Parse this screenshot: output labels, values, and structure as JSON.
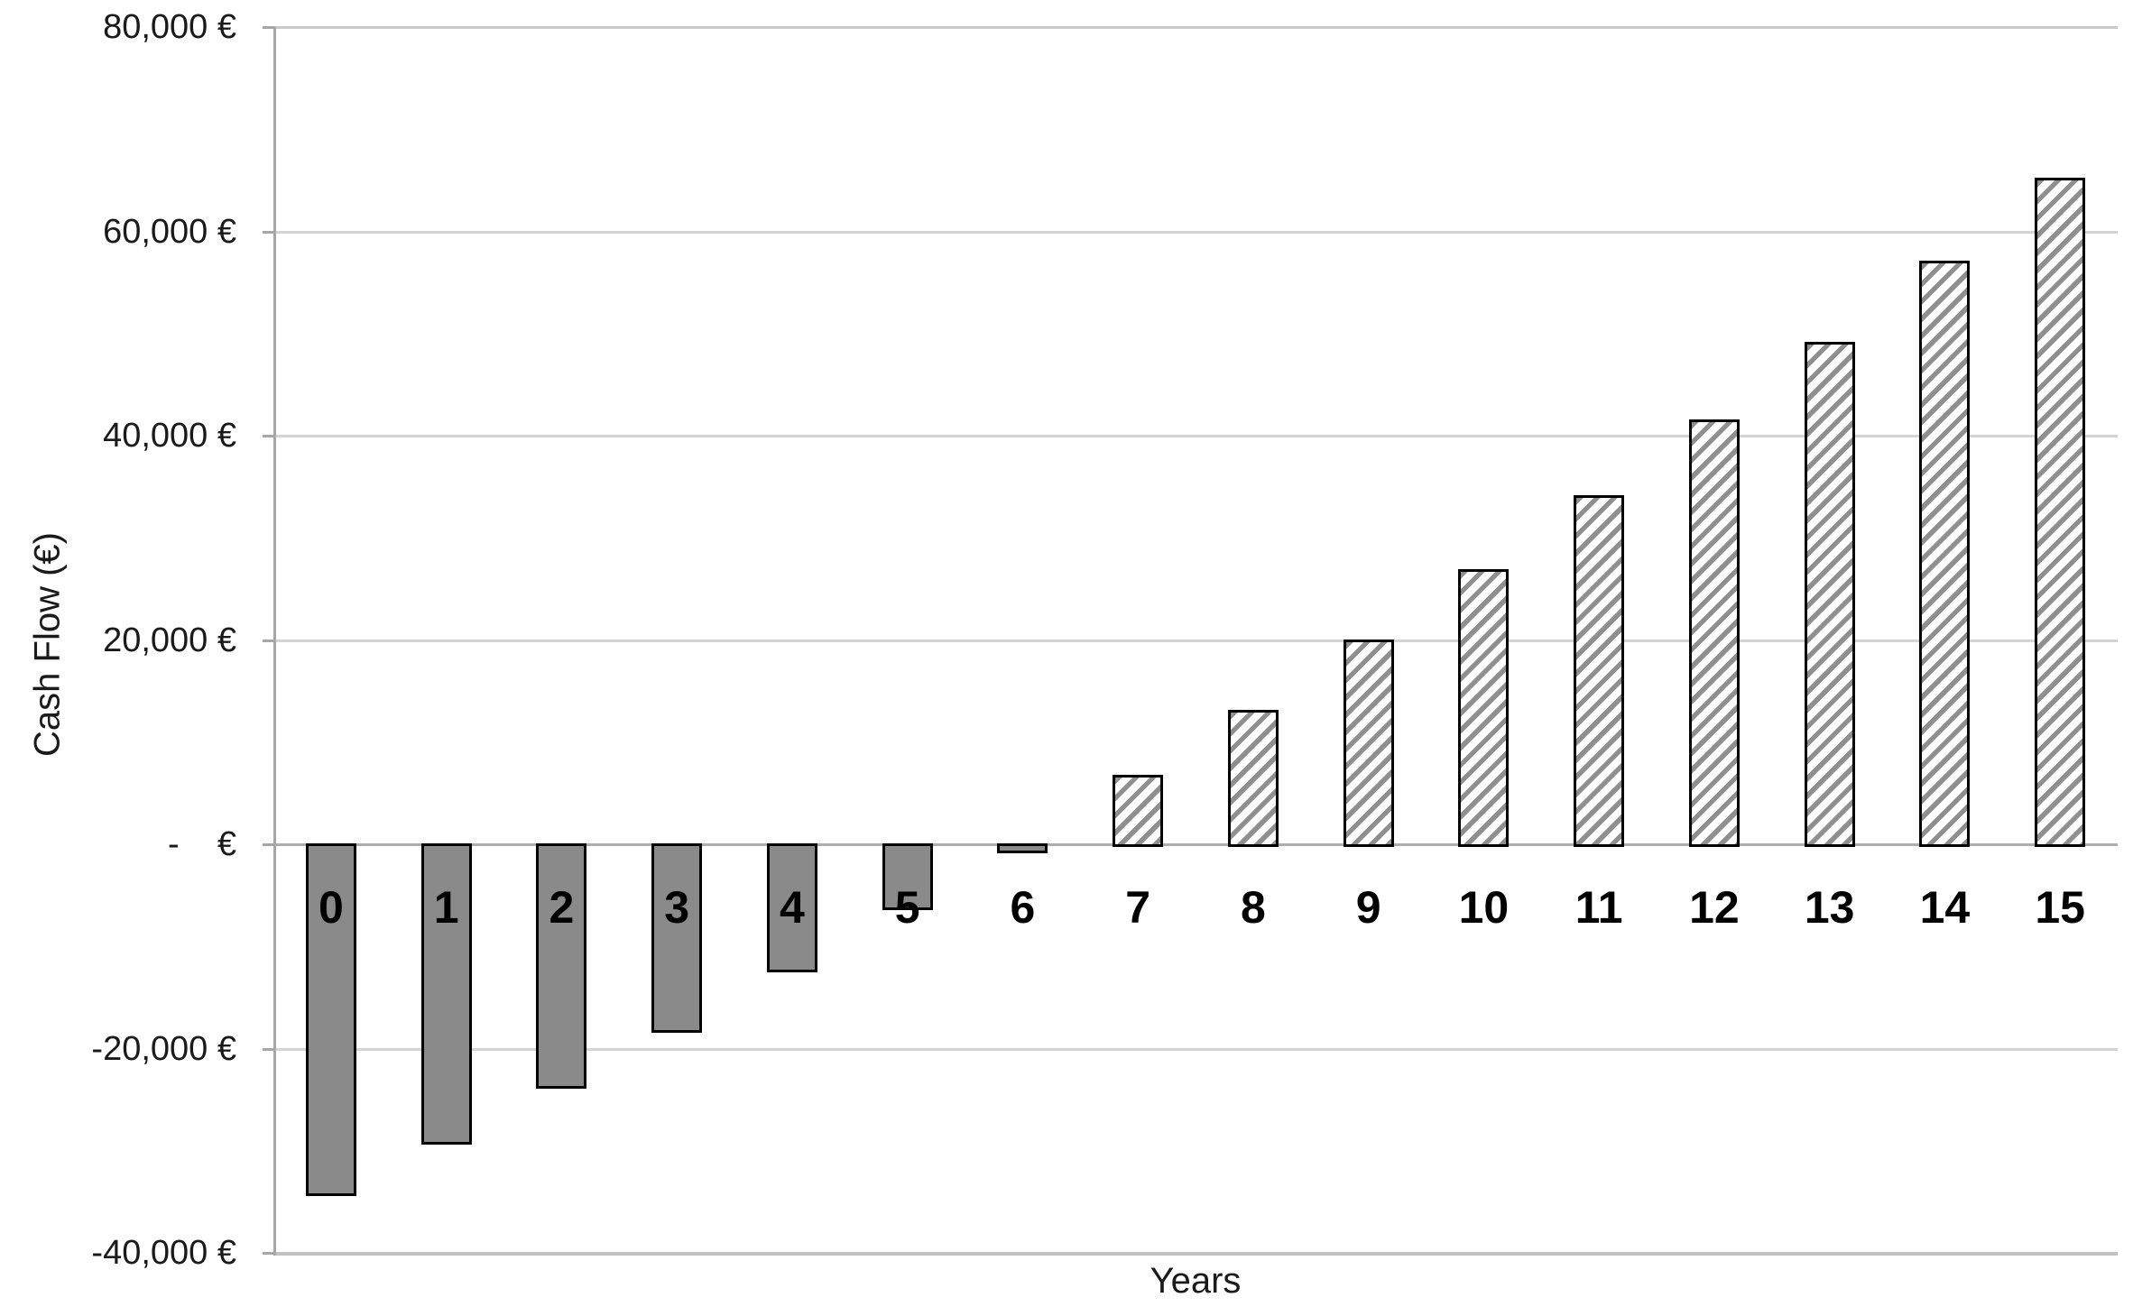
{
  "chart_data": {
    "type": "bar",
    "title": "",
    "xlabel": "Years",
    "ylabel": "Cash Flow (€)",
    "categories": [
      "0",
      "1",
      "2",
      "3",
      "4",
      "5",
      "6",
      "7",
      "8",
      "9",
      "10",
      "11",
      "12",
      "13",
      "14",
      "15"
    ],
    "values": [
      -34000,
      -29000,
      -23500,
      -18000,
      -12100,
      -6000,
      -400,
      6500,
      12900,
      19800,
      26700,
      33900,
      41300,
      48900,
      56900,
      65000
    ],
    "ylim": [
      -40000,
      80000
    ],
    "ytick_values": [
      80000,
      60000,
      40000,
      20000,
      0,
      -20000,
      -40000
    ],
    "ytick_labels": [
      "80,000 €",
      "60,000 €",
      "40,000 €",
      "20,000 €",
      "-    €",
      "-20,000 €",
      "-40,000 €"
    ],
    "grid": "horizontal gridlines every 20,000",
    "legend_position": "none",
    "bar_styles": {
      "negative_bars": "solid gray fill, black outline (years 0-6)",
      "positive_bars": "white fill with gray upward diagonal hatch, black outline (years 7-15)"
    },
    "colors": {
      "negative_fill": "#8A8A8A",
      "hatch_stripe": "#8F8F8F",
      "bar_border": "#000000",
      "gridline": "#D4D4D4",
      "zero_line": "#ADADAD",
      "axis_line": "#A6A6A6",
      "text": "#1A1A1A"
    }
  }
}
